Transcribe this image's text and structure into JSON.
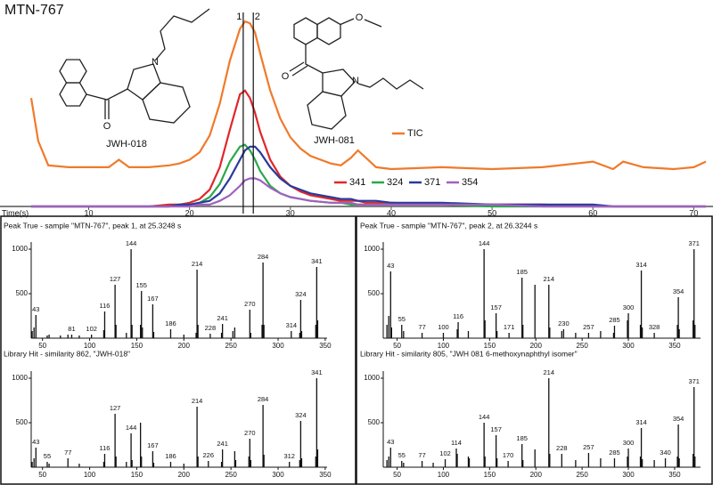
{
  "chart_data": [
    {
      "type": "line",
      "title": "MTN-767",
      "x_label": "Time(s)",
      "x": [
        4.3,
        5,
        6,
        8,
        10,
        12,
        13,
        14,
        16,
        18,
        19,
        20,
        21,
        22,
        23,
        24,
        25,
        25.5,
        26,
        26.5,
        27,
        28,
        29,
        30,
        31,
        32,
        34,
        35,
        36,
        36.7,
        37.5,
        38.5,
        40,
        45,
        50,
        55,
        60,
        62,
        63,
        65,
        68,
        70,
        71.2
      ],
      "xlim": [
        4.3,
        71.2
      ],
      "xticks": [
        10,
        20,
        30,
        40,
        50,
        60,
        70
      ],
      "ylim": [
        0,
        100
      ],
      "series": [
        {
          "name": "TIC",
          "color": "#f07a2a",
          "values": [
            58,
            35,
            22,
            21,
            21,
            21,
            25,
            21,
            21,
            22,
            23,
            25,
            29,
            38,
            55,
            78,
            95,
            99,
            98,
            93,
            82,
            62,
            47,
            37,
            31,
            27,
            23,
            22,
            26,
            30,
            26,
            21,
            20,
            21,
            20,
            21,
            24,
            20,
            24,
            21,
            20,
            21,
            24
          ]
        },
        {
          "name": "341",
          "color": "#e0262a",
          "values": [
            0,
            0,
            0,
            0,
            0,
            0,
            0,
            0,
            0,
            1,
            1,
            2,
            4,
            9,
            21,
            41,
            60,
            62,
            58,
            50,
            40,
            25,
            16,
            11,
            8,
            6,
            4,
            3,
            3,
            3,
            2,
            2,
            2,
            1,
            1,
            1,
            0,
            0,
            0,
            0,
            0,
            0,
            0
          ]
        },
        {
          "name": "324",
          "color": "#2aa84a",
          "values": [
            0,
            0,
            0,
            0,
            0,
            0,
            0,
            0,
            0,
            0,
            1,
            1,
            2,
            5,
            12,
            24,
            32,
            33,
            30,
            25,
            19,
            11,
            7,
            5,
            4,
            3,
            2,
            2,
            1,
            1,
            1,
            1,
            1,
            1,
            0,
            0,
            0,
            0,
            0,
            0,
            0,
            0,
            0
          ]
        },
        {
          "name": "371",
          "color": "#2a3a9a",
          "values": [
            0,
            0,
            0,
            0,
            0,
            0,
            0,
            0,
            0,
            0,
            1,
            1,
            2,
            3,
            7,
            15,
            25,
            30,
            32,
            32,
            29,
            21,
            15,
            11,
            9,
            7,
            5,
            4,
            4,
            3,
            3,
            3,
            2,
            2,
            1,
            1,
            1,
            0,
            0,
            0,
            0,
            0,
            0
          ]
        },
        {
          "name": "354",
          "color": "#a060c0",
          "values": [
            0,
            0,
            0,
            0,
            0,
            0,
            0,
            0,
            0,
            0,
            0,
            0,
            1,
            1,
            3,
            6,
            11,
            14,
            15,
            15,
            14,
            10,
            7,
            5,
            4,
            3,
            2,
            2,
            2,
            1,
            1,
            1,
            1,
            1,
            1,
            0,
            0,
            0,
            0,
            0,
            0,
            0,
            0
          ]
        }
      ],
      "markers": [
        {
          "value": 25.3248,
          "label": "1"
        },
        {
          "value": 26.3244,
          "label": "2"
        }
      ],
      "structures": [
        {
          "name": "JWH-018",
          "atoms": [
            "O",
            "N"
          ]
        },
        {
          "name": "JWH-081",
          "atoms": [
            "O",
            "O",
            "N"
          ]
        }
      ]
    },
    {
      "type": "stick",
      "title": "Peak True - sample \"MTN-767\", peak 1, at 25.3248 s",
      "color": "#111",
      "x": [
        39,
        41,
        43,
        55,
        57,
        69,
        77,
        81,
        89,
        102,
        115,
        116,
        127,
        128,
        139,
        144,
        145,
        154,
        155,
        156,
        167,
        168,
        186,
        200,
        213,
        214,
        215,
        228,
        240,
        241,
        252,
        254,
        270,
        271,
        283,
        284,
        285,
        314,
        323,
        324,
        325,
        340,
        341,
        342
      ],
      "values": [
        80,
        120,
        260,
        30,
        40,
        30,
        40,
        40,
        30,
        40,
        90,
        300,
        600,
        150,
        60,
        1000,
        150,
        150,
        530,
        120,
        380,
        70,
        100,
        40,
        60,
        770,
        150,
        50,
        60,
        160,
        80,
        120,
        320,
        60,
        150,
        850,
        150,
        80,
        60,
        430,
        80,
        150,
        800,
        200
      ],
      "peak_labels": [
        43,
        81,
        102,
        116,
        127,
        144,
        155,
        167,
        186,
        214,
        228,
        241,
        270,
        284,
        314,
        324,
        341
      ],
      "xlim": [
        38,
        352
      ],
      "xticks": [
        50,
        100,
        150,
        200,
        250,
        300,
        350
      ],
      "ylim": [
        0,
        1050
      ],
      "yticks": [
        500,
        1000
      ]
    },
    {
      "type": "stick",
      "title": "Peak True - sample \"MTN-767\", peak 2, at 26.3244 s",
      "color": "#111",
      "x": [
        39,
        41,
        43,
        44,
        55,
        57,
        77,
        100,
        115,
        116,
        127,
        144,
        145,
        157,
        158,
        171,
        185,
        186,
        199,
        214,
        215,
        228,
        230,
        243,
        257,
        270,
        284,
        285,
        299,
        300,
        313,
        314,
        315,
        328,
        353,
        354,
        355,
        370,
        371,
        372
      ],
      "values": [
        150,
        250,
        750,
        120,
        150,
        80,
        60,
        60,
        100,
        180,
        80,
        1000,
        200,
        280,
        80,
        60,
        680,
        150,
        600,
        600,
        120,
        80,
        100,
        60,
        60,
        80,
        60,
        140,
        200,
        280,
        150,
        760,
        120,
        60,
        150,
        460,
        100,
        200,
        1000,
        150
      ],
      "peak_labels": [
        43,
        55,
        77,
        100,
        116,
        144,
        157,
        171,
        185,
        214,
        230,
        257,
        285,
        300,
        314,
        328,
        354,
        371
      ],
      "xlim": [
        35,
        378
      ],
      "xticks": [
        50,
        100,
        150,
        200,
        250,
        300,
        350
      ],
      "ylim": [
        0,
        1050
      ],
      "yticks": [
        500,
        1000
      ]
    },
    {
      "type": "stick",
      "title": "Library Hit - similarity 862, \"JWH-018\"",
      "color": "#111",
      "x": [
        39,
        41,
        43,
        55,
        57,
        77,
        89,
        115,
        116,
        127,
        128,
        139,
        144,
        145,
        154,
        155,
        167,
        168,
        186,
        200,
        214,
        215,
        226,
        240,
        241,
        254,
        255,
        269,
        270,
        271,
        284,
        285,
        312,
        323,
        324,
        325,
        340,
        341,
        342
      ],
      "values": [
        60,
        100,
        220,
        60,
        40,
        100,
        40,
        60,
        150,
        600,
        120,
        60,
        380,
        80,
        500,
        120,
        180,
        50,
        60,
        40,
        680,
        120,
        70,
        60,
        200,
        180,
        80,
        120,
        320,
        80,
        700,
        140,
        60,
        80,
        520,
        100,
        120,
        1000,
        200
      ],
      "peak_labels": [
        43,
        55,
        77,
        116,
        127,
        144,
        167,
        186,
        214,
        226,
        241,
        270,
        284,
        312,
        324,
        341
      ],
      "xlim": [
        38,
        352
      ],
      "xticks": [
        50,
        100,
        150,
        200,
        250,
        300,
        350
      ],
      "ylim": [
        0,
        1050
      ],
      "yticks": [
        500,
        1000
      ]
    },
    {
      "type": "stick",
      "title": "Library Hit - similarity 805, \"JWH 081 6-methoxynaphthyl isomer\"",
      "color": "#111",
      "x": [
        39,
        41,
        43,
        55,
        57,
        77,
        89,
        102,
        114,
        115,
        127,
        128,
        144,
        145,
        157,
        158,
        170,
        185,
        186,
        199,
        214,
        215,
        228,
        243,
        257,
        270,
        285,
        299,
        300,
        313,
        314,
        315,
        328,
        340,
        353,
        354,
        355,
        370,
        371,
        372
      ],
      "values": [
        80,
        120,
        220,
        70,
        50,
        70,
        50,
        90,
        210,
        150,
        120,
        100,
        500,
        120,
        360,
        100,
        70,
        260,
        80,
        200,
        1000,
        150,
        150,
        80,
        160,
        100,
        100,
        120,
        210,
        120,
        440,
        90,
        80,
        100,
        120,
        480,
        100,
        150,
        900,
        120
      ],
      "peak_labels": [
        43,
        55,
        77,
        102,
        114,
        144,
        157,
        170,
        185,
        214,
        228,
        257,
        285,
        300,
        314,
        340,
        354,
        371
      ],
      "xlim": [
        35,
        378
      ],
      "xticks": [
        50,
        100,
        150,
        200,
        250,
        300,
        350
      ],
      "ylim": [
        0,
        1050
      ],
      "yticks": [
        500,
        1000
      ]
    }
  ]
}
